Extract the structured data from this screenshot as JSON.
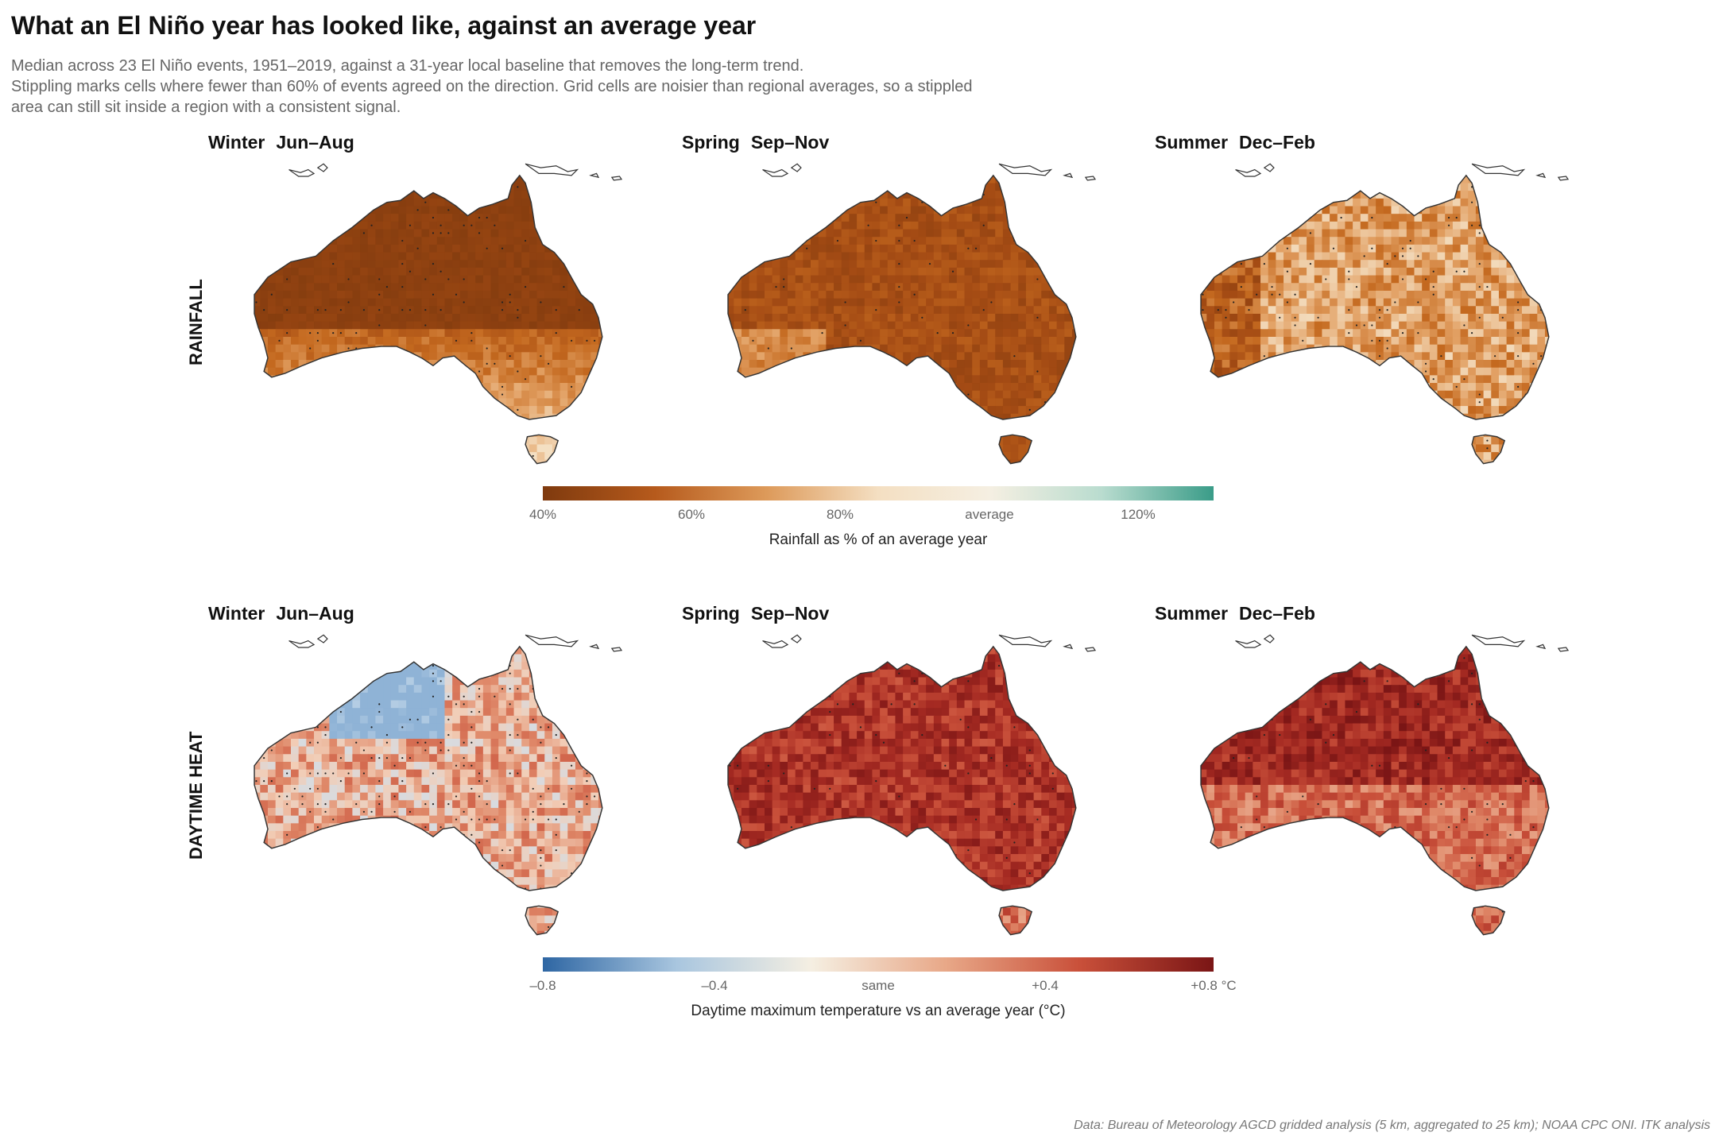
{
  "title": "What an El Niño year has looked like, against an average year",
  "subtitle": [
    "Median across 23 El Niño events, 1951–2019, against a 31-year local baseline that removes the long-term trend.",
    "Stippling marks cells where fewer than 60% of events agreed on the direction. Grid cells are noisier than regional averages, so a stippled",
    "area can still sit inside a region with a consistent signal."
  ],
  "rows": [
    {
      "label": "RAINFALL",
      "panels": [
        {
          "season": "Winter",
          "months": "Jun–Aug",
          "intensity": 0.95,
          "tone": "dry-north",
          "stipple": 0.35
        },
        {
          "season": "Spring",
          "months": "Sep–Nov",
          "intensity": 0.85,
          "tone": "dry-all",
          "stipple": 0.15
        },
        {
          "season": "Summer",
          "months": "Dec–Feb",
          "intensity": 0.55,
          "tone": "dry-patchy",
          "stipple": 0.3
        }
      ],
      "colorbar": {
        "ticks": [
          "40%",
          "60%",
          "80%",
          "average",
          "120%"
        ],
        "label": "Rainfall as % of an average year",
        "colors": [
          "#7f3a0e",
          "#b65a1c",
          "#dd9a5a",
          "#f4dfc2",
          "#f5efe2",
          "#b9dccf",
          "#3a9c88"
        ]
      }
    },
    {
      "label": "DAYTIME HEAT",
      "panels": [
        {
          "season": "Winter",
          "months": "Jun–Aug",
          "intensity": 0.35,
          "tone": "warm-mild",
          "stipple": 0.55
        },
        {
          "season": "Spring",
          "months": "Sep–Nov",
          "intensity": 0.8,
          "tone": "warm-strong",
          "stipple": 0.2
        },
        {
          "season": "Summer",
          "months": "Dec–Feb",
          "intensity": 0.85,
          "tone": "warm-north",
          "stipple": 0.15
        }
      ],
      "colorbar": {
        "ticks": [
          "–0.8",
          "–0.4",
          "same",
          "+0.4",
          "+0.8 °C"
        ],
        "label": "Daytime maximum temperature vs an average year (°C)",
        "colors": [
          "#2e66a3",
          "#a9c6df",
          "#f5efe2",
          "#e8a888",
          "#c9503a",
          "#7a1515"
        ]
      }
    }
  ],
  "source": "Data: Bureau of Meteorology AGCD gridded analysis (5 km, aggregated to 25 km); NOAA CPC ONI. ITK analysis"
}
